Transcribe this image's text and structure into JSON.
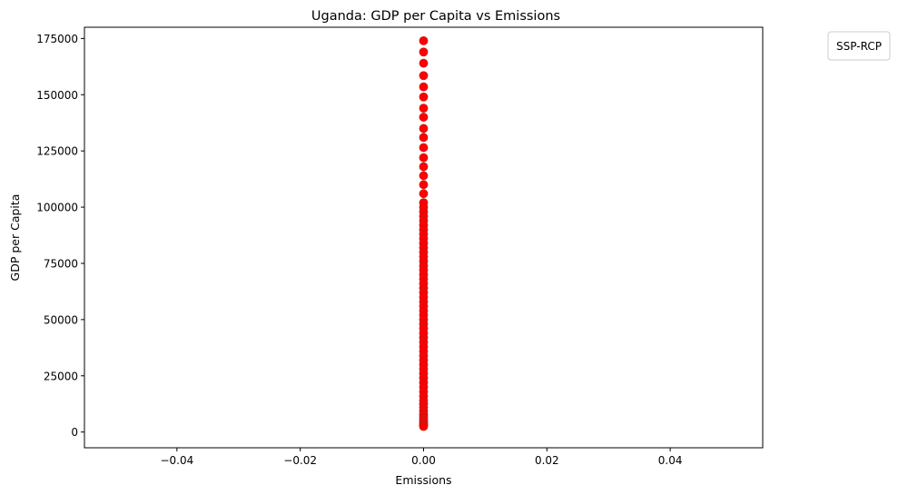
{
  "chart_data": {
    "type": "scatter",
    "title": "Uganda: GDP per Capita vs Emissions",
    "xlabel": "Emissions",
    "ylabel": "GDP per Capita",
    "xlim": [
      -0.055,
      0.055
    ],
    "ylim": [
      -7000,
      180000
    ],
    "x_ticks": [
      -0.04,
      -0.02,
      0.0,
      0.02,
      0.04
    ],
    "x_tick_labels": [
      "−0.04",
      "−0.02",
      "0.00",
      "0.02",
      "0.04"
    ],
    "y_ticks": [
      0,
      25000,
      50000,
      75000,
      100000,
      125000,
      150000,
      175000
    ],
    "y_tick_labels": [
      "0",
      "25000",
      "50000",
      "75000",
      "100000",
      "125000",
      "150000",
      "175000"
    ],
    "grid": false,
    "legend": {
      "title": "SSP-RCP",
      "placement": "outside-top-right",
      "entries": []
    },
    "series": [
      {
        "color": "#ff0000",
        "edge_color": "#b22222",
        "x": [
          0,
          0,
          0,
          0,
          0,
          0,
          0,
          0,
          0,
          0,
          0,
          0,
          0,
          0,
          0,
          0,
          0,
          0,
          0,
          0,
          0,
          0,
          0,
          0,
          0,
          0,
          0,
          0,
          0,
          0,
          0,
          0,
          0,
          0,
          0,
          0,
          0,
          0,
          0,
          0,
          0,
          0,
          0,
          0,
          0,
          0,
          0,
          0,
          0,
          0,
          0,
          0,
          0,
          0,
          0,
          0,
          0,
          0,
          0,
          0,
          0,
          0,
          0,
          0,
          0,
          0,
          0,
          0,
          0,
          0,
          0,
          0
        ],
        "y": [
          174000,
          169000,
          164000,
          158500,
          153500,
          149000,
          144000,
          140000,
          135000,
          131000,
          126500,
          122000,
          118000,
          114000,
          110000,
          106000,
          102000,
          100000,
          98000,
          96000,
          94000,
          92000,
          90000,
          88000,
          86000,
          84000,
          82000,
          80000,
          78000,
          76000,
          74000,
          72000,
          70000,
          68000,
          66000,
          64000,
          62000,
          60000,
          58000,
          56000,
          54000,
          52000,
          50000,
          48000,
          46000,
          44000,
          42000,
          40000,
          38000,
          36000,
          34000,
          32000,
          30000,
          28000,
          26000,
          24000,
          22000,
          20000,
          18000,
          16000,
          14000,
          12500,
          11000,
          9500,
          8000,
          7000,
          6000,
          5000,
          4200,
          3500,
          3000,
          2500
        ]
      }
    ]
  }
}
